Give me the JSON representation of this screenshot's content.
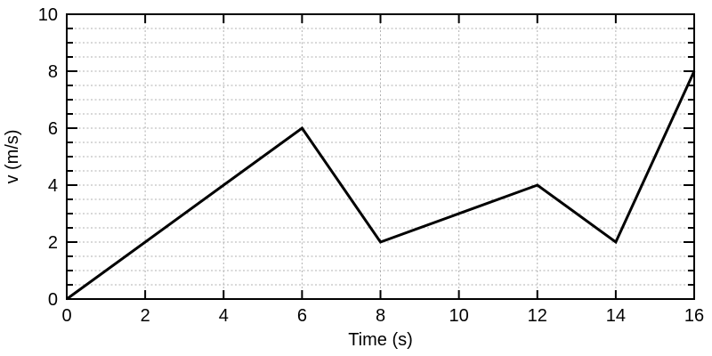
{
  "chart_data": {
    "type": "line",
    "title": "",
    "xlabel": "Time (s)",
    "ylabel": "v (m/s)",
    "xlim": [
      0,
      16
    ],
    "ylim": [
      0,
      10
    ],
    "x_major_ticks": [
      0,
      2,
      4,
      6,
      8,
      10,
      12,
      14,
      16
    ],
    "y_major_ticks": [
      0,
      2,
      4,
      6,
      8,
      10
    ],
    "y_minor_step": 0.5,
    "grid": {
      "horizontal_step": 0.5,
      "vertical_step": 2,
      "style": "dashed",
      "color": "#b0b0b0"
    },
    "frame": "box",
    "background_color": "#ffffff",
    "axis_color": "#000000",
    "text_color": "#000000",
    "series": [
      {
        "name": "v",
        "color": "#000000",
        "line_width": 3,
        "points": [
          [
            0,
            0
          ],
          [
            6,
            6
          ],
          [
            8,
            2
          ],
          [
            12,
            4
          ],
          [
            14,
            2
          ],
          [
            16,
            8
          ]
        ]
      }
    ]
  }
}
